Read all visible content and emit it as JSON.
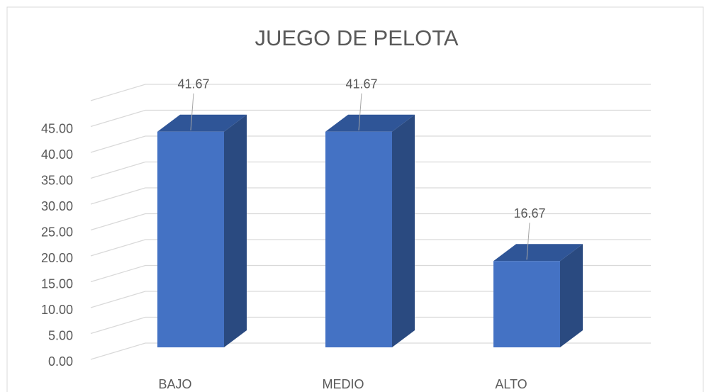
{
  "chart_data": {
    "type": "bar3d",
    "title": "JUEGO DE PELOTA",
    "categories": [
      "BAJO",
      "MEDIO",
      "ALTO"
    ],
    "values": [
      41.67,
      41.67,
      16.67
    ],
    "color": "#4472c4",
    "ylim": [
      0,
      50
    ],
    "yticks": [
      {
        "value": 0,
        "label": "0.00"
      },
      {
        "value": 5,
        "label": "5.00"
      },
      {
        "value": 10,
        "label": "10.00"
      },
      {
        "value": 15,
        "label": "15.00"
      },
      {
        "value": 20,
        "label": "20.00"
      },
      {
        "value": 25,
        "label": "25.00"
      },
      {
        "value": 30,
        "label": "30.00"
      },
      {
        "value": 35,
        "label": "35.00"
      },
      {
        "value": 40,
        "label": "40.00"
      },
      {
        "value": 45,
        "label": "45.00"
      }
    ],
    "grid": true
  }
}
